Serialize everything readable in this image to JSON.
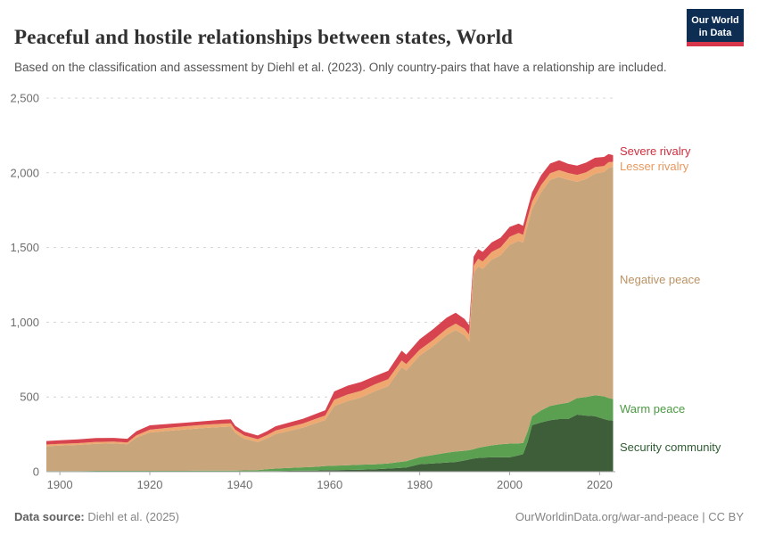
{
  "header": {
    "title": "Peaceful and hostile relationships between states, World",
    "subtitle": "Based on the classification and assessment by Diehl et al. (2023). Only country-pairs that have a relationship are included.",
    "logo": {
      "line1": "Our World",
      "line2": "in Data",
      "bg_color": "#0d2d52",
      "bar_color": "#d7354a"
    }
  },
  "chart_data": {
    "type": "area",
    "stacked": true,
    "title": "Peaceful and hostile relationships between states, World",
    "xlabel": "",
    "ylabel": "",
    "grid": "horizontal-dashed",
    "legend_position": "right-edge-labels",
    "xlim": [
      1897,
      2023.5
    ],
    "ylim": [
      0,
      2500
    ],
    "x_ticks": [
      1900,
      1920,
      1940,
      1960,
      1980,
      2000,
      2020
    ],
    "y_ticks": [
      0,
      500,
      1000,
      1500,
      2000,
      2500
    ],
    "y_tick_labels": [
      "0",
      "500",
      "1,000",
      "1,500",
      "2,000",
      "2,500"
    ],
    "grid_color": "#d4d4d4",
    "axis_color": "#a8a8a8",
    "tick_label_color": "#6e6e6e",
    "x": [
      1897,
      1900,
      1904,
      1908,
      1912,
      1915,
      1917,
      1920,
      1924,
      1928,
      1932,
      1936,
      1938,
      1939,
      1941,
      1944,
      1946,
      1948,
      1951,
      1954,
      1957,
      1959,
      1961,
      1964,
      1967,
      1970,
      1973,
      1976,
      1977,
      1980,
      1983,
      1986,
      1988,
      1990,
      1991,
      1992,
      1993,
      1994,
      1996,
      1998,
      2000,
      2002,
      2003,
      2004,
      2005,
      2007,
      2009,
      2011,
      2013,
      2015,
      2017,
      2019,
      2021,
      2022,
      2023
    ],
    "series": [
      {
        "name": "Security community",
        "color": "#3e5e3a",
        "label_color": "#2f5d33",
        "values": [
          2,
          2,
          2,
          3,
          3,
          3,
          3,
          3,
          3,
          3,
          3,
          3,
          3,
          3,
          3,
          3,
          4,
          5,
          6,
          7,
          8,
          10,
          10,
          12,
          14,
          17,
          21,
          26,
          28,
          50,
          55,
          61,
          65,
          75,
          82,
          88,
          92,
          94,
          96,
          97,
          96,
          110,
          118,
          200,
          312,
          330,
          345,
          352,
          352,
          382,
          375,
          372,
          352,
          345,
          341
        ]
      },
      {
        "name": "Warm peace",
        "color": "#5aa050",
        "label_color": "#4c9a43",
        "values": [
          3,
          3,
          3,
          3,
          3,
          3,
          3,
          3,
          3,
          3,
          4,
          5,
          5,
          5,
          6,
          7,
          12,
          16,
          19,
          22,
          25,
          28,
          30,
          31,
          33,
          32,
          34,
          40,
          42,
          47,
          57,
          66,
          70,
          65,
          62,
          63,
          68,
          72,
          80,
          86,
          92,
          80,
          75,
          70,
          60,
          80,
          95,
          100,
          110,
          110,
          125,
          140,
          152,
          148,
          145
        ]
      },
      {
        "name": "Negative peace",
        "color": "#c9a57c",
        "label_color": "#bb9264",
        "values": [
          165,
          169,
          174,
          181,
          183,
          178,
          222,
          256,
          267,
          277,
          285,
          291,
          294,
          252,
          212,
          188,
          206,
          231,
          248,
          266,
          293,
          308,
          400,
          430,
          450,
          490,
          518,
          633,
          607,
          680,
          728,
          788,
          813,
          772,
          728,
          1178,
          1215,
          1190,
          1243,
          1266,
          1330,
          1355,
          1340,
          1380,
          1385,
          1460,
          1512,
          1520,
          1492,
          1448,
          1458,
          1482,
          1502,
          1540,
          1553
        ]
      },
      {
        "name": "Lesser rivalry",
        "color": "#efa86f",
        "label_color": "#e8985f",
        "values": [
          12,
          12,
          12,
          12,
          12,
          12,
          15,
          19,
          20,
          21,
          22,
          22,
          22,
          21,
          21,
          20,
          22,
          24,
          26,
          27,
          29,
          30,
          41,
          44,
          45,
          45,
          46,
          45,
          44,
          39,
          41,
          42,
          43,
          44,
          45,
          49,
          50,
          51,
          51,
          52,
          54,
          53,
          52,
          51,
          50,
          48,
          45,
          46,
          45,
          46,
          45,
          44,
          40,
          38,
          35
        ]
      },
      {
        "name": "Severe rivalry",
        "color": "#d7434e",
        "label_color": "#d12f3f",
        "values": [
          23,
          24,
          25,
          26,
          25,
          24,
          28,
          29,
          26,
          24,
          24,
          26,
          27,
          26,
          26,
          24,
          26,
          28,
          30,
          31,
          33,
          35,
          56,
          59,
          58,
          55,
          56,
          66,
          62,
          70,
          73,
          74,
          73,
          66,
          63,
          62,
          64,
          64,
          64,
          65,
          66,
          62,
          60,
          61,
          62,
          66,
          65,
          66,
          61,
          62,
          65,
          63,
          60,
          55,
          44
        ]
      }
    ]
  },
  "footer": {
    "datasource_label": "Data source:",
    "datasource_value": "Diehl et al. (2025)",
    "url": "OurWorldinData.org/war-and-peace",
    "separator": "|",
    "license": "CC BY"
  }
}
